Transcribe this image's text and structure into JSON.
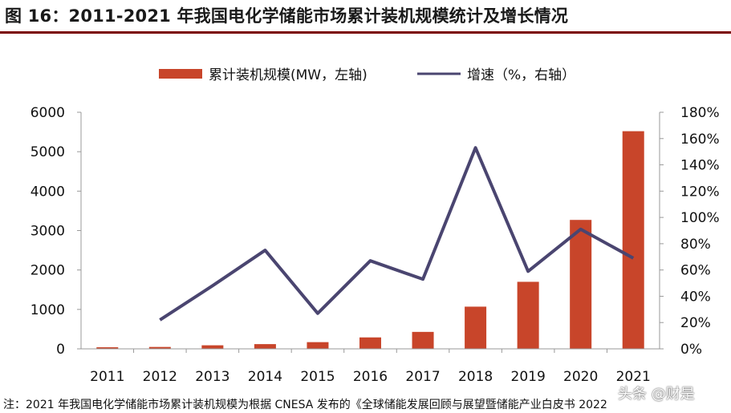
{
  "title": "图 16：2011-2021 年我国电化学储能市场累计装机规模统计及增长情况",
  "note": "注：2021 年我国电化学储能市场累计装机规模为根据 CNESA 发布的《全球储能发展回顾与展望暨储能产业白皮书 2022",
  "watermark": "头条 @财是",
  "colors": {
    "bar": "#c8452a",
    "line": "#4a4570",
    "title_rule": "#7a0000"
  },
  "chart_data": {
    "type": "bar",
    "categories": [
      "2011",
      "2012",
      "2013",
      "2014",
      "2015",
      "2016",
      "2017",
      "2018",
      "2019",
      "2020",
      "2021"
    ],
    "series": [
      {
        "name": "累计装机规模(MW，左轴)",
        "type": "bar",
        "axis": "left",
        "values": [
          40,
          48,
          90,
          120,
          170,
          290,
          430,
          1070,
          1700,
          3270,
          5520
        ]
      },
      {
        "name": "增速（%，右轴）",
        "type": "line",
        "axis": "right",
        "values": [
          null,
          22,
          48,
          75,
          27,
          67,
          53,
          153,
          59,
          91,
          69
        ]
      }
    ],
    "y_left": {
      "min": 0,
      "max": 6000,
      "ticks": [
        "0",
        "1000",
        "2000",
        "3000",
        "4000",
        "5000",
        "6000"
      ]
    },
    "y_right": {
      "min": 0,
      "max": 180,
      "ticks": [
        "0%",
        "20%",
        "40%",
        "60%",
        "80%",
        "100%",
        "120%",
        "140%",
        "160%",
        "180%"
      ]
    },
    "legend": "top",
    "grid": false
  }
}
